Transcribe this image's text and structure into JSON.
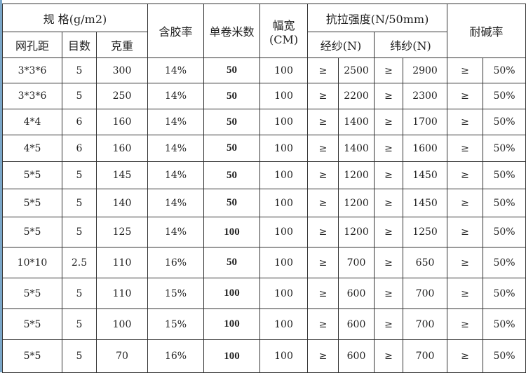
{
  "header": {
    "spec": "规  格(g/m2)",
    "glue": "含胶率",
    "roll": "单卷米数",
    "width": "幅宽(CM)",
    "tensile": "抗拉强度(N/50mm)",
    "alkali": "耐碱率",
    "mesh": "网孔距",
    "count": "目数",
    "weight": "克重",
    "warp": "经纱(N)",
    "weft": "纬纱(N)"
  },
  "ge": "≥",
  "rows": [
    [
      "3*3*6",
      "5",
      "300",
      "14%",
      "50",
      "100",
      "2500",
      "2900",
      "50%"
    ],
    [
      "3*3*6",
      "5",
      "250",
      "14%",
      "50",
      "100",
      "2200",
      "2300",
      "50%"
    ],
    [
      "4*4",
      "6",
      "160",
      "14%",
      "50",
      "100",
      "1400",
      "1700",
      "50%"
    ],
    [
      "4*5",
      "6",
      "160",
      "14%",
      "50",
      "100",
      "1400",
      "1600",
      "50%"
    ],
    [
      "5*5",
      "5",
      "145",
      "14%",
      "50",
      "100",
      "1200",
      "1450",
      "50%"
    ],
    [
      "5*5",
      "5",
      "140",
      "14%",
      "50",
      "100",
      "1200",
      "1450",
      "50%"
    ],
    [
      "5*5",
      "5",
      "125",
      "14%",
      "100",
      "100",
      "1200",
      "1250",
      "50%"
    ],
    [
      "10*10",
      "2.5",
      "110",
      "16%",
      "50",
      "100",
      "700",
      "650",
      "50%"
    ],
    [
      "5*5",
      "5",
      "110",
      "15%",
      "100",
      "100",
      "600",
      "700",
      "50%"
    ],
    [
      "5*5",
      "5",
      "100",
      "15%",
      "100",
      "100",
      "600",
      "700",
      "50%"
    ],
    [
      "5*5",
      "5",
      "70",
      "16%",
      "100",
      "100",
      "600",
      "700",
      "50%"
    ]
  ]
}
